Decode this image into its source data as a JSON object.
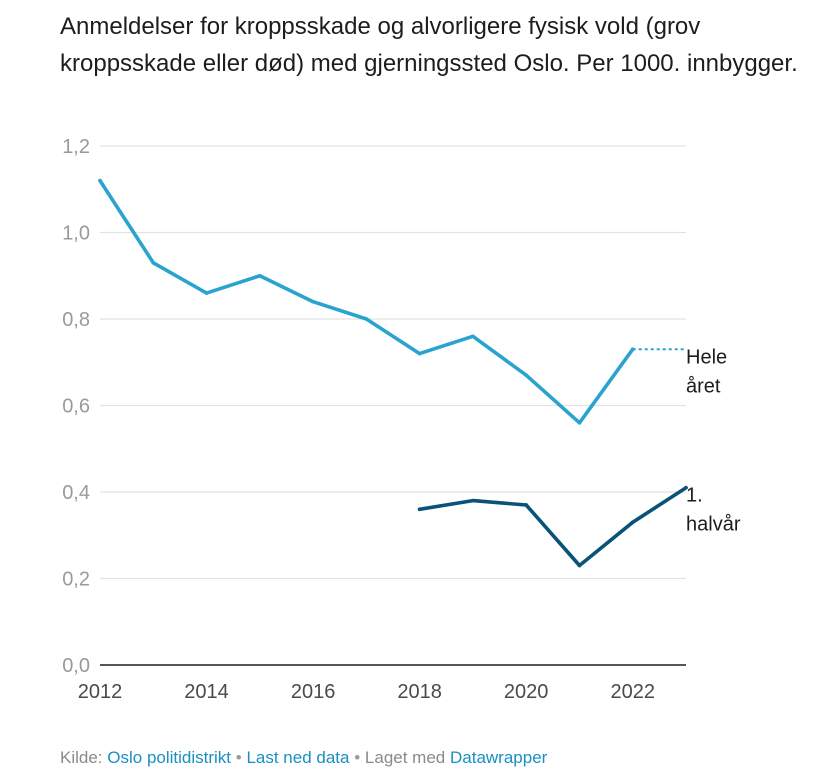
{
  "title": "Anmeldelser for kroppsskade og alvorligere fysisk vold (grov kroppsskade eller død) med gjerningssted Oslo. Per 1000. innbygger.",
  "chart_data": {
    "type": "line",
    "title": "Anmeldelser for kroppsskade og alvorligere fysisk vold (grov kroppsskade eller død) med gjerningssted Oslo. Per 1000. innbygger.",
    "xlabel": "",
    "ylabel": "",
    "xlim": [
      2012,
      2023
    ],
    "ylim": [
      0,
      1.2
    ],
    "x_ticks": [
      2012,
      2014,
      2016,
      2018,
      2020,
      2022
    ],
    "x_tick_labels": [
      "2012",
      "2014",
      "2016",
      "2018",
      "2020",
      "2022"
    ],
    "y_ticks": [
      0,
      0.2,
      0.4,
      0.6,
      0.8,
      1.0,
      1.2
    ],
    "y_tick_labels": [
      "0,0",
      "0,2",
      "0,4",
      "0,6",
      "0,8",
      "1,0",
      "1,2"
    ],
    "grid": "horizontal",
    "series": [
      {
        "name": "Hele året",
        "label_lines": [
          "Hele",
          "året"
        ],
        "color": "#2aa3cf",
        "x": [
          2012,
          2013,
          2014,
          2015,
          2016,
          2017,
          2018,
          2019,
          2020,
          2021,
          2022
        ],
        "values": [
          1.12,
          0.93,
          0.86,
          0.9,
          0.84,
          0.8,
          0.72,
          0.76,
          0.67,
          0.56,
          0.73
        ],
        "dotted_extension_to": 2023
      },
      {
        "name": "1. halvår",
        "label_lines": [
          "1.",
          "halvår"
        ],
        "color": "#0a5377",
        "x": [
          2018,
          2019,
          2020,
          2021,
          2022,
          2023
        ],
        "values": [
          0.36,
          0.38,
          0.37,
          0.23,
          0.33,
          0.41
        ]
      }
    ]
  },
  "footer": {
    "source_prefix": "Kilde:",
    "source_link": "Oslo politidistrikt",
    "separator": "•",
    "download_link": "Last ned data",
    "made_with": "Laget med",
    "tool_link": "Datawrapper"
  }
}
